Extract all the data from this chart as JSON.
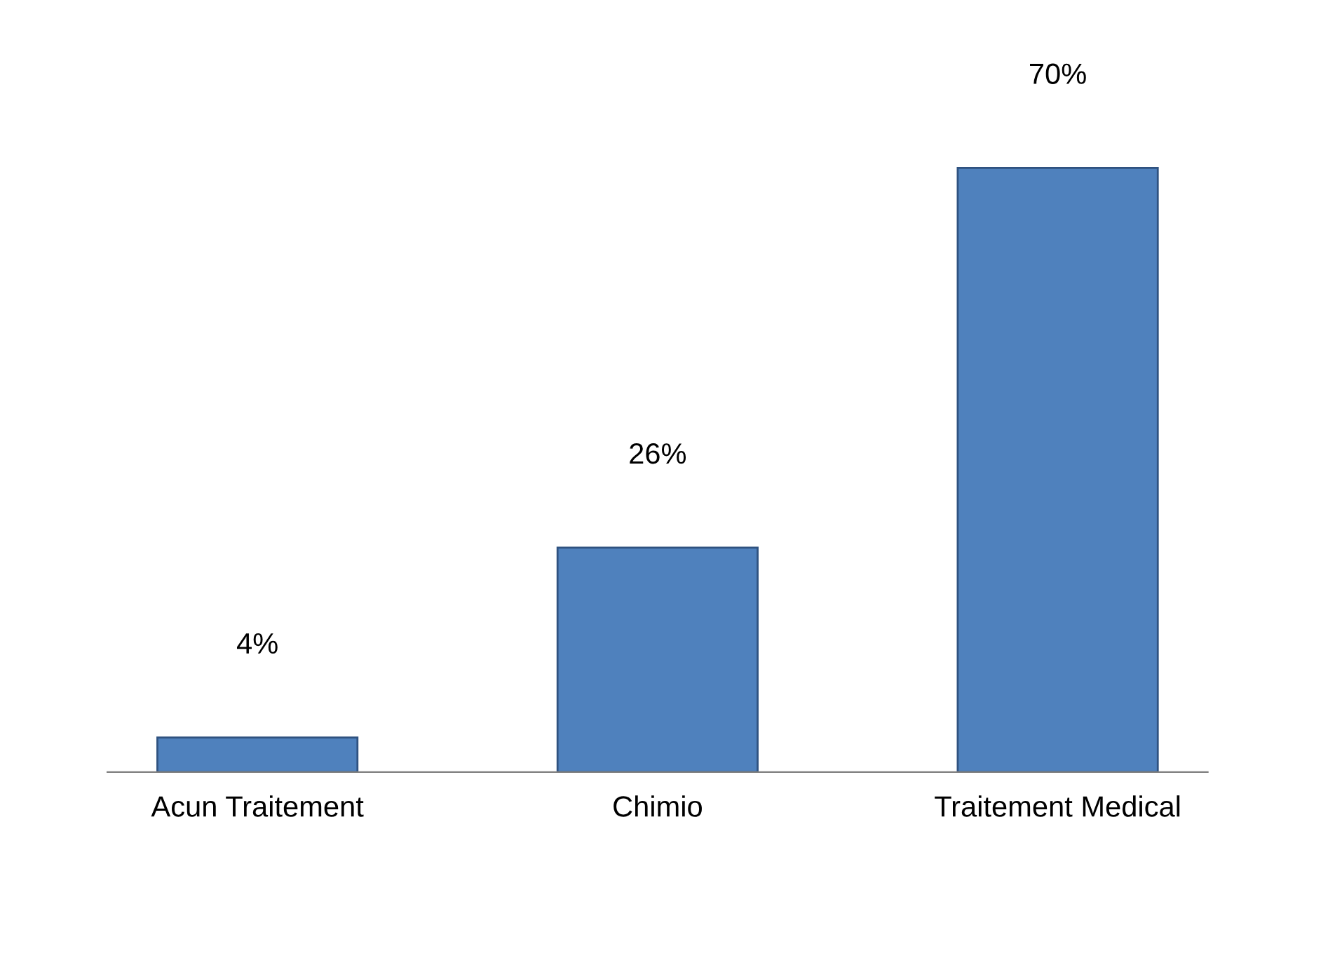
{
  "chart_data": {
    "type": "bar",
    "categories": [
      "Acun Traitement",
      "Chimio",
      "Traitement Medical"
    ],
    "values": [
      4,
      26,
      70
    ],
    "value_labels": [
      "4%",
      "26%",
      "70%"
    ],
    "color": "#4f81bd",
    "grid": false,
    "legend": false
  }
}
